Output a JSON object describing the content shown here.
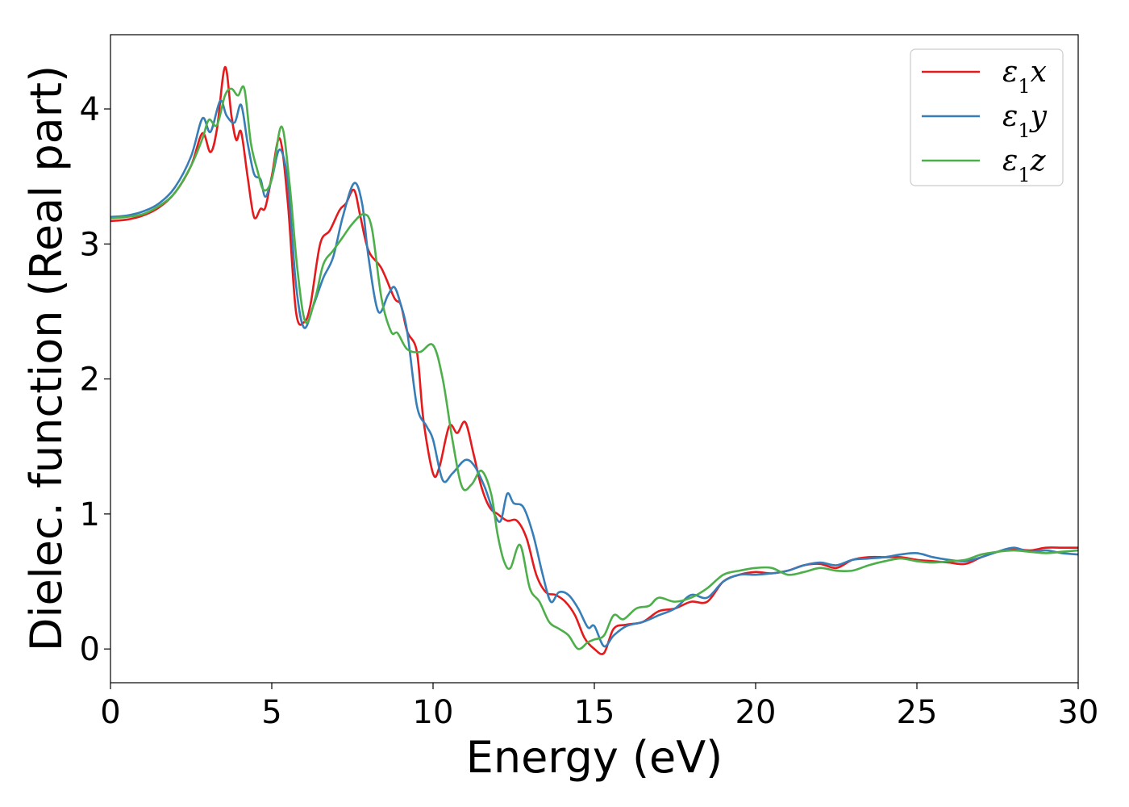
{
  "chart_data": {
    "type": "line",
    "xlabel": "Energy (eV)",
    "ylabel": "Dielec. function (Real part)",
    "xlim": [
      0,
      30
    ],
    "ylim": [
      -0.25,
      4.55
    ],
    "xticks": [
      0,
      5,
      10,
      15,
      20,
      25,
      30
    ],
    "yticks": [
      0,
      1,
      2,
      3,
      4
    ],
    "grid": false,
    "legend_position": "top-right",
    "series": [
      {
        "name": "ε₁x",
        "legend_base": "ε",
        "legend_sub": "1",
        "legend_suffix": "x",
        "color": "#e41a1c",
        "x": [
          0,
          0.5,
          1,
          1.5,
          2,
          2.5,
          2.85,
          3.1,
          3.3,
          3.55,
          3.75,
          3.9,
          4.05,
          4.25,
          4.45,
          4.65,
          4.8,
          5.0,
          5.25,
          5.5,
          5.75,
          6.0,
          6.2,
          6.5,
          6.8,
          7.1,
          7.3,
          7.55,
          7.75,
          8.0,
          8.4,
          8.8,
          9.0,
          9.2,
          9.5,
          9.7,
          10.0,
          10.2,
          10.5,
          10.75,
          11.0,
          11.25,
          11.5,
          11.75,
          12.0,
          12.3,
          12.6,
          12.9,
          13.2,
          13.5,
          13.8,
          14.1,
          14.4,
          14.7,
          15.0,
          15.3,
          15.6,
          16.0,
          16.5,
          17.0,
          17.5,
          18.0,
          18.5,
          19.0,
          19.5,
          20.0,
          20.5,
          21.0,
          21.5,
          22.0,
          22.5,
          23.0,
          23.5,
          24.0,
          24.5,
          25.0,
          25.5,
          26.0,
          26.5,
          27.0,
          27.5,
          28.0,
          28.5,
          29.0,
          29.5,
          30.0
        ],
        "y": [
          3.17,
          3.18,
          3.21,
          3.27,
          3.38,
          3.58,
          3.82,
          3.68,
          3.85,
          4.31,
          3.95,
          3.77,
          3.83,
          3.5,
          3.2,
          3.26,
          3.27,
          3.5,
          3.78,
          3.3,
          2.5,
          2.42,
          2.55,
          3.0,
          3.1,
          3.25,
          3.3,
          3.4,
          3.2,
          2.95,
          2.82,
          2.6,
          2.55,
          2.35,
          2.2,
          1.7,
          1.3,
          1.35,
          1.65,
          1.6,
          1.68,
          1.45,
          1.2,
          1.05,
          1.0,
          0.95,
          0.95,
          0.82,
          0.55,
          0.42,
          0.4,
          0.35,
          0.25,
          0.08,
          0.0,
          -0.03,
          0.15,
          0.18,
          0.2,
          0.28,
          0.3,
          0.35,
          0.35,
          0.5,
          0.55,
          0.57,
          0.56,
          0.58,
          0.62,
          0.63,
          0.6,
          0.66,
          0.68,
          0.68,
          0.68,
          0.66,
          0.65,
          0.64,
          0.63,
          0.68,
          0.72,
          0.74,
          0.73,
          0.75,
          0.75,
          0.75
        ]
      },
      {
        "name": "ε₁y",
        "legend_base": "ε",
        "legend_sub": "1",
        "legend_suffix": "y",
        "color": "#377eb8",
        "x": [
          0,
          0.5,
          1,
          1.5,
          2,
          2.5,
          2.85,
          3.1,
          3.4,
          3.6,
          3.85,
          4.05,
          4.25,
          4.45,
          4.65,
          4.8,
          5.0,
          5.25,
          5.5,
          5.75,
          6.0,
          6.3,
          6.6,
          6.9,
          7.2,
          7.55,
          7.8,
          8.0,
          8.3,
          8.6,
          8.8,
          9.0,
          9.2,
          9.5,
          9.8,
          10.0,
          10.3,
          10.6,
          11.0,
          11.3,
          11.6,
          11.9,
          12.1,
          12.3,
          12.5,
          12.8,
          13.1,
          13.4,
          13.65,
          13.9,
          14.2,
          14.5,
          14.8,
          15.0,
          15.3,
          15.6,
          16.0,
          16.5,
          17.0,
          17.5,
          18.0,
          18.5,
          19.0,
          19.5,
          20.0,
          20.5,
          21.0,
          21.5,
          22.0,
          22.5,
          23.0,
          23.5,
          24.0,
          24.5,
          25.0,
          25.5,
          26.0,
          26.5,
          27.0,
          27.5,
          28.0,
          28.5,
          29.0,
          29.5,
          30.0
        ],
        "y": [
          3.2,
          3.21,
          3.24,
          3.3,
          3.42,
          3.65,
          3.93,
          3.83,
          4.06,
          3.95,
          3.9,
          4.03,
          3.75,
          3.52,
          3.48,
          3.35,
          3.48,
          3.7,
          3.45,
          2.7,
          2.38,
          2.55,
          2.75,
          2.9,
          3.2,
          3.45,
          3.3,
          2.9,
          2.5,
          2.62,
          2.68,
          2.55,
          2.35,
          1.8,
          1.65,
          1.55,
          1.25,
          1.3,
          1.4,
          1.35,
          1.2,
          1.0,
          0.95,
          1.15,
          1.08,
          1.05,
          0.85,
          0.55,
          0.35,
          0.42,
          0.4,
          0.3,
          0.16,
          0.17,
          0.02,
          0.1,
          0.17,
          0.2,
          0.25,
          0.3,
          0.4,
          0.38,
          0.5,
          0.55,
          0.55,
          0.56,
          0.58,
          0.62,
          0.64,
          0.62,
          0.66,
          0.67,
          0.68,
          0.7,
          0.71,
          0.68,
          0.66,
          0.65,
          0.68,
          0.72,
          0.75,
          0.72,
          0.73,
          0.71,
          0.7
        ]
      },
      {
        "name": "ε₁z",
        "legend_base": "ε",
        "legend_sub": "1",
        "legend_suffix": "z",
        "color": "#4daf4a",
        "x": [
          0,
          0.5,
          1,
          1.5,
          2,
          2.5,
          2.85,
          3.05,
          3.3,
          3.55,
          3.75,
          3.95,
          4.15,
          4.35,
          4.55,
          4.75,
          5.0,
          5.3,
          5.55,
          5.8,
          6.05,
          6.35,
          6.6,
          6.9,
          7.2,
          7.5,
          7.85,
          8.1,
          8.4,
          8.7,
          8.9,
          9.2,
          9.6,
          10.0,
          10.3,
          10.6,
          10.9,
          11.2,
          11.5,
          11.8,
          12.0,
          12.2,
          12.4,
          12.7,
          13.0,
          13.3,
          13.6,
          13.9,
          14.2,
          14.5,
          14.8,
          15.0,
          15.3,
          15.6,
          15.9,
          16.3,
          16.7,
          17.0,
          17.5,
          18.0,
          18.5,
          19.0,
          19.5,
          20.0,
          20.5,
          21.0,
          21.5,
          22.0,
          22.5,
          23.0,
          23.5,
          24.0,
          24.5,
          25.0,
          25.5,
          26.0,
          26.5,
          27.0,
          27.5,
          28.0,
          28.5,
          29.0,
          29.5,
          30.0
        ],
        "y": [
          3.19,
          3.2,
          3.22,
          3.28,
          3.38,
          3.58,
          3.78,
          3.92,
          3.88,
          4.1,
          4.15,
          4.1,
          4.15,
          3.75,
          3.55,
          3.4,
          3.48,
          3.87,
          3.45,
          2.8,
          2.42,
          2.6,
          2.85,
          2.95,
          3.05,
          3.15,
          3.22,
          3.12,
          2.6,
          2.35,
          2.34,
          2.22,
          2.2,
          2.25,
          2.0,
          1.55,
          1.2,
          1.22,
          1.32,
          1.15,
          0.85,
          0.65,
          0.6,
          0.77,
          0.45,
          0.35,
          0.2,
          0.15,
          0.1,
          0.0,
          0.05,
          0.07,
          0.1,
          0.25,
          0.22,
          0.3,
          0.32,
          0.38,
          0.35,
          0.38,
          0.45,
          0.55,
          0.58,
          0.6,
          0.6,
          0.55,
          0.57,
          0.6,
          0.58,
          0.58,
          0.62,
          0.65,
          0.67,
          0.65,
          0.64,
          0.65,
          0.66,
          0.7,
          0.72,
          0.73,
          0.72,
          0.71,
          0.72,
          0.73
        ]
      }
    ]
  }
}
